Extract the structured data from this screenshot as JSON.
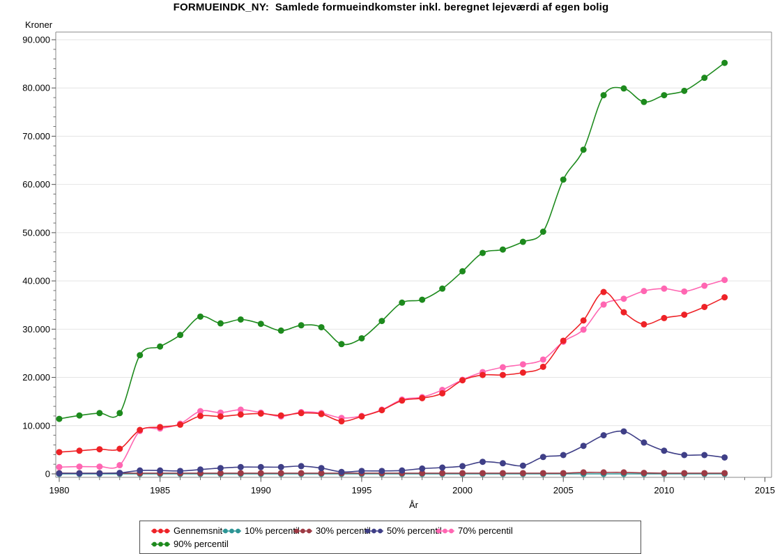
{
  "title": "FORMUEINDK_NY:  Samlede formueindkomster inkl. beregnet lejeværdi af egen bolig",
  "chart_data": {
    "type": "line",
    "title": "FORMUEINDK_NY:  Samlede formueindkomster inkl. beregnet lejeværdi af egen bolig",
    "xlabel": "År",
    "ylabel": "Kroner",
    "xlim": [
      1980,
      2015
    ],
    "ylim": [
      0,
      90000
    ],
    "grid": "horizontal-major",
    "legend_position": "bottom",
    "x": [
      1980,
      1981,
      1982,
      1983,
      1984,
      1985,
      1986,
      1987,
      1988,
      1989,
      1990,
      1991,
      1992,
      1993,
      1994,
      1995,
      1996,
      1997,
      1998,
      1999,
      2000,
      2001,
      2002,
      2003,
      2004,
      2005,
      2006,
      2007,
      2008,
      2009,
      2010,
      2011,
      2012,
      2013
    ],
    "x_major_ticks": [
      1980,
      1985,
      1990,
      1995,
      2000,
      2005,
      2010,
      2015
    ],
    "x_minor_tick_step": 1,
    "y_major_ticks": [
      0,
      10000,
      20000,
      30000,
      40000,
      50000,
      60000,
      70000,
      80000,
      90000
    ],
    "y_tick_labels": [
      "0",
      "10.000",
      "20.000",
      "30.000",
      "40.000",
      "50.000",
      "60.000",
      "70.000",
      "80.000",
      "90.000"
    ],
    "y_minor_tick_step": 2000,
    "series": [
      {
        "name": "Gennemsnit",
        "color": "#ee2227",
        "values": [
          4500,
          4800,
          5100,
          5200,
          9100,
          9700,
          10200,
          12000,
          11900,
          12300,
          12500,
          12100,
          12600,
          12400,
          10900,
          11900,
          13200,
          15200,
          15700,
          16700,
          19400,
          20500,
          20500,
          21000,
          22200,
          27600,
          31800,
          37700,
          33500,
          31000,
          32300,
          33000,
          34600,
          36600
        ]
      },
      {
        "name": "10% percentil",
        "color": "#2d9595",
        "values": [
          0,
          0,
          0,
          0,
          0,
          0,
          0,
          0,
          0,
          0,
          0,
          0,
          0,
          0,
          0,
          0,
          0,
          0,
          0,
          0,
          0,
          0,
          0,
          0,
          0,
          0,
          0,
          0,
          0,
          0,
          0,
          0,
          0,
          0
        ]
      },
      {
        "name": "30% percentil",
        "color": "#9d3a44",
        "values": [
          150,
          150,
          150,
          150,
          150,
          150,
          150,
          150,
          150,
          150,
          150,
          150,
          150,
          150,
          150,
          150,
          150,
          150,
          150,
          150,
          150,
          150,
          150,
          150,
          150,
          150,
          300,
          300,
          300,
          200,
          150,
          150,
          150,
          150
        ]
      },
      {
        "name": "50% percentil",
        "color": "#3f3f87",
        "values": [
          100,
          100,
          100,
          200,
          700,
          700,
          600,
          900,
          1200,
          1400,
          1400,
          1400,
          1600,
          1200,
          400,
          600,
          600,
          700,
          1100,
          1300,
          1600,
          2500,
          2200,
          1700,
          3500,
          3900,
          5800,
          8000,
          8800,
          6500,
          4800,
          3900,
          3900,
          3400
        ]
      },
      {
        "name": "70% percentil",
        "color": "#ff66b2",
        "values": [
          1400,
          1500,
          1500,
          1800,
          8900,
          9400,
          10400,
          13000,
          12700,
          13300,
          12700,
          11900,
          12800,
          12600,
          11600,
          12000,
          13300,
          15400,
          15900,
          17400,
          19500,
          21100,
          22100,
          22700,
          23700,
          27400,
          29900,
          35100,
          36300,
          37900,
          38400,
          37800,
          39000,
          40200
        ]
      },
      {
        "name": "90% percentil",
        "color": "#1d8a1d",
        "values": [
          11400,
          12100,
          12600,
          12600,
          24600,
          26400,
          28800,
          32600,
          31200,
          32000,
          31100,
          29700,
          30800,
          30400,
          26900,
          28100,
          31700,
          35500,
          36100,
          38400,
          42000,
          45800,
          46500,
          48100,
          50200,
          61000,
          67200,
          78500,
          79900,
          77100,
          78500,
          79400,
          82100,
          85200
        ]
      }
    ]
  }
}
